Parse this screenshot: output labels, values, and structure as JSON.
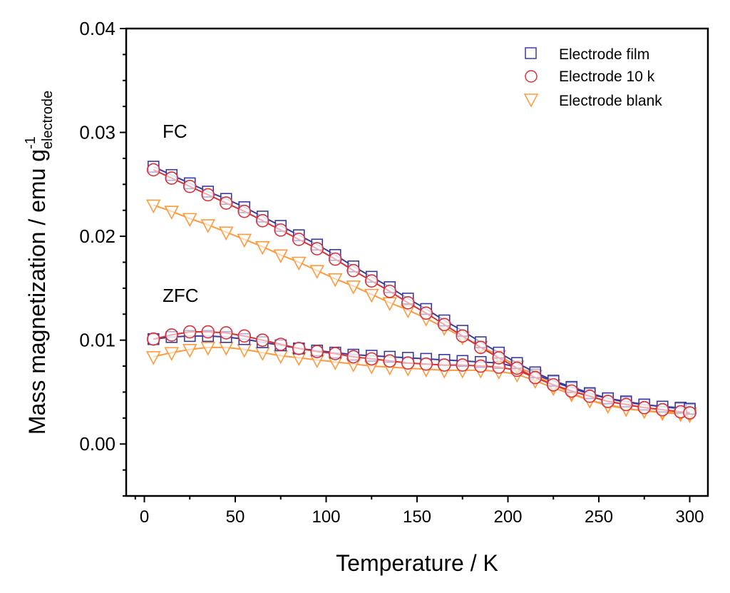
{
  "chart_data": {
    "type": "scatter",
    "xlabel": "Temperature / K",
    "ylabel": "Mass magnetization / emu g",
    "ylabel_sup": "-1",
    "ylabel_sub": "electrode",
    "xlim": [
      -10,
      310
    ],
    "ylim": [
      -0.005,
      0.04
    ],
    "xticks": [
      0,
      50,
      100,
      150,
      200,
      250,
      300
    ],
    "yticks": [
      0.0,
      0.01,
      0.02,
      0.03,
      0.04
    ],
    "ytick_labels": [
      "0.00",
      "0.01",
      "0.02",
      "0.03",
      "0.04"
    ],
    "grid": false,
    "legend_position": "top-right",
    "annotations": [
      {
        "text": "FC",
        "x": 10,
        "y": 0.0295
      },
      {
        "text": "ZFC",
        "x": 10,
        "y": 0.0137
      }
    ],
    "x": [
      5,
      15,
      25,
      35,
      45,
      55,
      65,
      75,
      85,
      95,
      105,
      115,
      125,
      135,
      145,
      155,
      165,
      175,
      185,
      195,
      205,
      215,
      225,
      235,
      245,
      255,
      265,
      275,
      285,
      295,
      300
    ],
    "series": [
      {
        "name": "Electrode film",
        "marker": "square",
        "color": "#3a3a9e",
        "fc": [
          0.0267,
          0.0259,
          0.0251,
          0.0243,
          0.0236,
          0.0228,
          0.0219,
          0.021,
          0.0201,
          0.0192,
          0.0182,
          0.0171,
          0.0161,
          0.0151,
          0.014,
          0.013,
          0.0119,
          0.0109,
          0.0098,
          0.0088,
          0.0078,
          0.0069,
          0.0061,
          0.0055,
          0.0049,
          0.0044,
          0.0041,
          0.0038,
          0.0036,
          0.0035,
          0.0034
        ],
        "zfc": [
          0.0101,
          0.0103,
          0.0104,
          0.0104,
          0.0103,
          0.0101,
          0.0098,
          0.0095,
          0.0092,
          0.009,
          0.0088,
          0.0086,
          0.0085,
          0.0084,
          0.0083,
          0.0082,
          0.0081,
          0.008,
          0.0079,
          0.0078,
          0.0074,
          0.0067,
          0.006,
          0.0054,
          0.0048,
          0.0044,
          0.004,
          0.0038,
          0.0036,
          0.0034,
          0.0033
        ]
      },
      {
        "name": "Electrode 10 k",
        "marker": "circle",
        "color": "#d6323a",
        "fc": [
          0.0264,
          0.0256,
          0.0248,
          0.024,
          0.0232,
          0.0224,
          0.0215,
          0.0206,
          0.0197,
          0.0188,
          0.0178,
          0.0167,
          0.0157,
          0.0147,
          0.0136,
          0.0126,
          0.0115,
          0.0104,
          0.0093,
          0.0083,
          0.0073,
          0.0064,
          0.0057,
          0.0051,
          0.0046,
          0.0041,
          0.0038,
          0.0035,
          0.0033,
          0.0031,
          0.003
        ],
        "zfc": [
          0.0101,
          0.0105,
          0.0108,
          0.0108,
          0.0107,
          0.0104,
          0.01,
          0.0096,
          0.0092,
          0.0089,
          0.0087,
          0.0084,
          0.0082,
          0.008,
          0.0078,
          0.0077,
          0.0076,
          0.0076,
          0.0075,
          0.0074,
          0.0071,
          0.0064,
          0.0057,
          0.0051,
          0.0046,
          0.0041,
          0.0038,
          0.0035,
          0.0033,
          0.0031,
          0.003
        ]
      },
      {
        "name": "Electrode blank",
        "marker": "triangle-down",
        "color": "#ff9a3c",
        "fc": [
          0.023,
          0.0224,
          0.0217,
          0.0211,
          0.0204,
          0.0197,
          0.019,
          0.0182,
          0.0175,
          0.0167,
          0.0159,
          0.0152,
          0.0144,
          0.0136,
          0.0129,
          0.0121,
          0.0112,
          0.0103,
          0.0094,
          0.0085,
          0.0075,
          0.0066,
          0.0057,
          0.0049,
          0.0042,
          0.0037,
          0.0034,
          0.0032,
          0.0031,
          0.003,
          0.003
        ],
        "zfc": [
          0.0084,
          0.0088,
          0.0091,
          0.0093,
          0.0093,
          0.0091,
          0.0088,
          0.0085,
          0.0083,
          0.0081,
          0.0079,
          0.0077,
          0.0075,
          0.0074,
          0.0073,
          0.0072,
          0.0071,
          0.0071,
          0.0071,
          0.007,
          0.0067,
          0.0061,
          0.0054,
          0.0048,
          0.0042,
          0.0038,
          0.0034,
          0.0032,
          0.003,
          0.0029,
          0.0028
        ]
      }
    ]
  }
}
